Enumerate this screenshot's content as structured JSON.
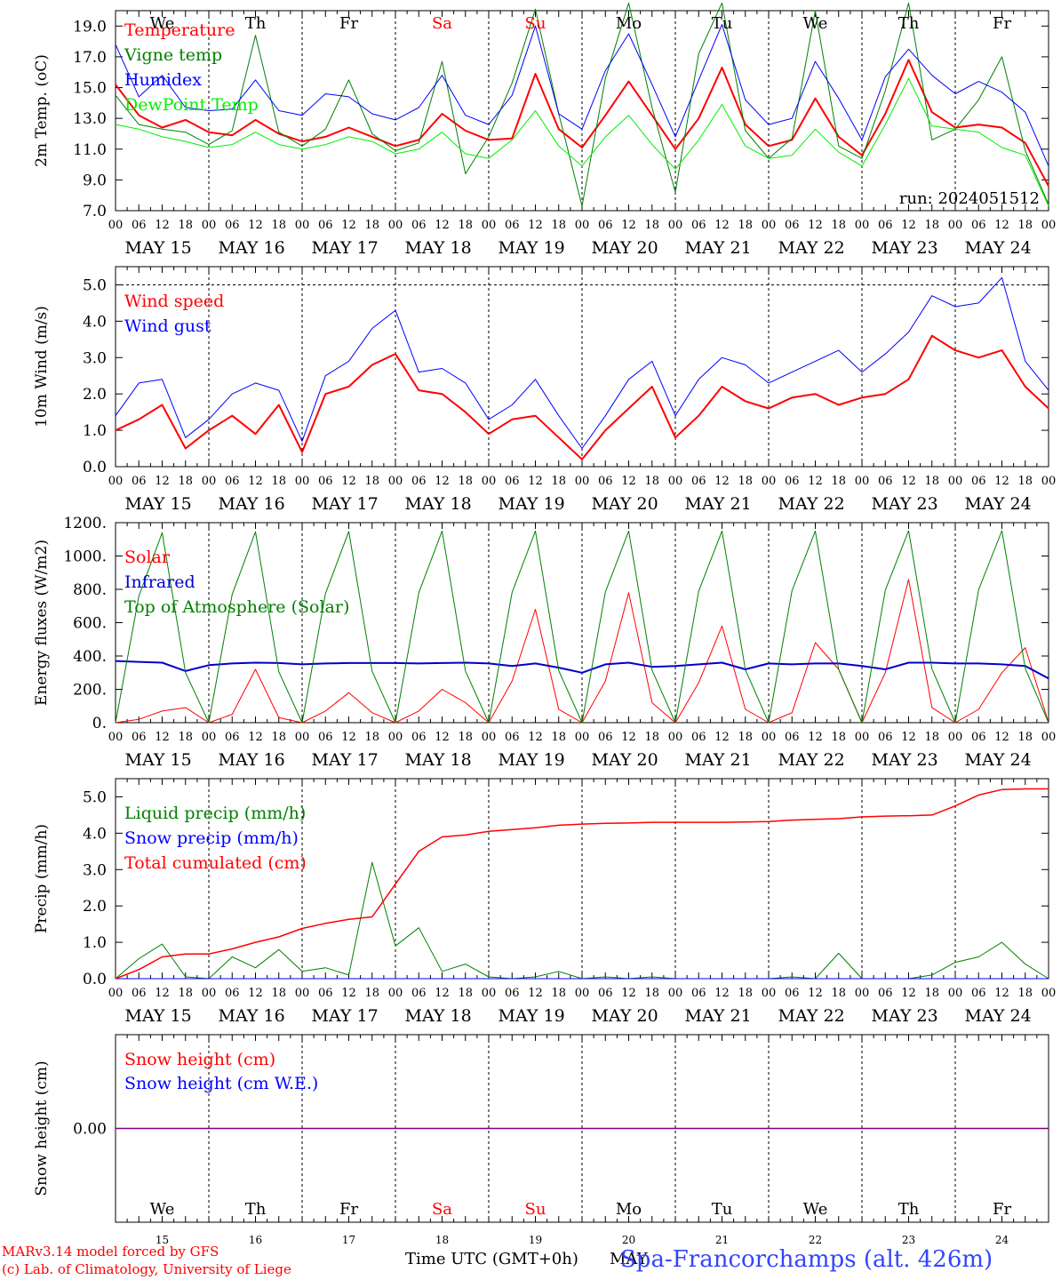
{
  "colors": {
    "temperature": "#ff0000",
    "vigne": "#008000",
    "humidex": "#0000ff",
    "dewpoint": "#00ee00",
    "weekend": "#ff0000",
    "text": "#000000",
    "station": "#3344ff",
    "credit": "#ff0000",
    "snow_line": "#7f007f"
  },
  "time_axis": {
    "start": "2024-05-15 00 UTC",
    "hour_ticks": [
      "00",
      "06",
      "12",
      "18"
    ],
    "final_tick": "00",
    "dates": [
      "MAY 15",
      "MAY 16",
      "MAY 17",
      "MAY 18",
      "MAY 19",
      "MAY 20",
      "MAY 21",
      "MAY 22",
      "MAY 23",
      "MAY 24"
    ],
    "weekdays": [
      {
        "label": "We",
        "weekend": false
      },
      {
        "label": "Th",
        "weekend": false
      },
      {
        "label": "Fr",
        "weekend": false
      },
      {
        "label": "Sa",
        "weekend": true
      },
      {
        "label": "Su",
        "weekend": true
      },
      {
        "label": "Mo",
        "weekend": false
      },
      {
        "label": "Tu",
        "weekend": false
      },
      {
        "label": "We",
        "weekend": false
      },
      {
        "label": "Th",
        "weekend": false
      },
      {
        "label": "Fr",
        "weekend": false
      }
    ],
    "day_numbers": [
      "15",
      "16",
      "17",
      "18",
      "19",
      "20",
      "21",
      "22",
      "23",
      "24"
    ],
    "xlabel": "Time UTC (GMT+0h)",
    "month_label": "MAY"
  },
  "chart_data": [
    {
      "type": "line",
      "ylabel": "2m Temp. (oC)",
      "ylim": [
        7.0,
        20.0
      ],
      "yticks": [
        "7.0",
        "9.0",
        "11.0",
        "13.0",
        "15.0",
        "17.0",
        "19.0"
      ],
      "run_label": "run: 2024051512",
      "weekday_labels": true,
      "x_hours": [
        0,
        6,
        12,
        18,
        24,
        30,
        36,
        42,
        48,
        54,
        60,
        66,
        72,
        78,
        84,
        90,
        96,
        102,
        108,
        114,
        120,
        126,
        132,
        138,
        144,
        150,
        156,
        162,
        168,
        174,
        180,
        186,
        192,
        198,
        204,
        210,
        216,
        222,
        228,
        234,
        240
      ],
      "series": [
        {
          "name": "Temperature",
          "color": "#ff0000",
          "width": 2,
          "values": [
            15.2,
            13.2,
            12.4,
            12.9,
            12.1,
            11.9,
            12.9,
            12.0,
            11.5,
            11.8,
            12.4,
            11.8,
            11.2,
            11.6,
            13.3,
            12.2,
            11.6,
            11.7,
            15.9,
            12.3,
            11.1,
            13.2,
            15.4,
            13.2,
            11.0,
            13.0,
            16.3,
            12.6,
            11.2,
            11.6,
            14.3,
            11.8,
            10.6,
            13.3,
            16.8,
            13.4,
            12.4,
            12.6,
            12.4,
            11.4,
            8.6
          ]
        },
        {
          "name": "Vigne temp",
          "color": "#008000",
          "width": 1,
          "values": [
            14.5,
            12.6,
            12.3,
            12.1,
            11.3,
            12.2,
            18.4,
            12.1,
            11.2,
            12.3,
            15.5,
            12.0,
            10.9,
            11.4,
            16.7,
            9.4,
            11.8,
            15.3,
            20.1,
            13.3,
            7.3,
            15.6,
            20.5,
            13.7,
            8.2,
            17.2,
            20.5,
            12.2,
            10.4,
            11.7,
            20.0,
            11.2,
            10.4,
            14.8,
            20.5,
            11.6,
            12.3,
            14.2,
            17.0,
            10.9,
            7.4
          ]
        },
        {
          "name": "Humidex",
          "color": "#0000ff",
          "width": 1,
          "values": [
            17.8,
            14.4,
            15.8,
            13.7,
            13.5,
            13.6,
            15.5,
            13.5,
            13.2,
            14.6,
            14.4,
            13.3,
            12.9,
            13.7,
            15.8,
            13.2,
            12.6,
            14.5,
            19.0,
            13.3,
            12.3,
            16.1,
            18.5,
            15.2,
            11.8,
            15.5,
            19.1,
            14.2,
            12.6,
            13.0,
            16.7,
            14.3,
            11.6,
            15.7,
            17.5,
            15.8,
            14.6,
            15.4,
            14.7,
            13.4,
            9.9
          ]
        },
        {
          "name": "DewPoint Temp",
          "color": "#00ee00",
          "width": 1,
          "values": [
            12.6,
            12.3,
            11.8,
            11.5,
            11.1,
            11.3,
            12.1,
            11.3,
            11.0,
            11.3,
            11.8,
            11.5,
            10.7,
            11.0,
            12.1,
            10.7,
            10.4,
            11.6,
            13.5,
            11.2,
            9.9,
            11.8,
            13.2,
            11.3,
            9.7,
            11.6,
            13.9,
            11.2,
            10.4,
            10.6,
            12.3,
            10.8,
            9.9,
            12.6,
            15.6,
            12.5,
            12.3,
            12.1,
            11.1,
            10.6,
            7.3
          ]
        }
      ]
    },
    {
      "type": "line",
      "ylabel": "10m Wind (m/s)",
      "ylim": [
        0.0,
        5.5
      ],
      "yticks": [
        "0.0",
        "1.0",
        "2.0",
        "3.0",
        "4.0",
        "5.0"
      ],
      "dashed_level": 5.0,
      "x_hours": [
        0,
        6,
        12,
        18,
        24,
        30,
        36,
        42,
        48,
        54,
        60,
        66,
        72,
        78,
        84,
        90,
        96,
        102,
        108,
        114,
        120,
        126,
        132,
        138,
        144,
        150,
        156,
        162,
        168,
        174,
        180,
        186,
        192,
        198,
        204,
        210,
        216,
        222,
        228,
        234,
        240
      ],
      "series": [
        {
          "name": "Wind speed",
          "color": "#ff0000",
          "width": 2,
          "values": [
            1.0,
            1.3,
            1.7,
            0.5,
            1.0,
            1.4,
            0.9,
            1.7,
            0.4,
            2.0,
            2.2,
            2.8,
            3.1,
            2.1,
            2.0,
            1.5,
            0.9,
            1.3,
            1.4,
            0.8,
            0.2,
            1.0,
            1.6,
            2.2,
            0.8,
            1.4,
            2.2,
            1.8,
            1.6,
            1.9,
            2.0,
            1.7,
            1.9,
            2.0,
            2.4,
            3.6,
            3.2,
            3.0,
            3.2,
            2.2,
            1.6
          ]
        },
        {
          "name": "Wind gust",
          "color": "#0000ff",
          "width": 1,
          "values": [
            1.4,
            2.3,
            2.4,
            0.8,
            1.3,
            2.0,
            2.3,
            2.1,
            0.7,
            2.5,
            2.9,
            3.8,
            4.3,
            2.6,
            2.7,
            2.3,
            1.3,
            1.7,
            2.4,
            1.4,
            0.5,
            1.4,
            2.4,
            2.9,
            1.4,
            2.4,
            3.0,
            2.8,
            2.3,
            2.6,
            2.9,
            3.2,
            2.6,
            3.1,
            3.7,
            4.7,
            4.4,
            4.5,
            5.2,
            2.9,
            2.1
          ]
        }
      ]
    },
    {
      "type": "line",
      "ylabel": "Energy fluxes (W/m2)",
      "ylim": [
        0,
        1200
      ],
      "yticks": [
        "0.",
        "200.",
        "400.",
        "600.",
        "800.",
        "1000.",
        "1200."
      ],
      "x_hours": [
        0,
        6,
        12,
        18,
        24,
        30,
        36,
        42,
        48,
        54,
        60,
        66,
        72,
        78,
        84,
        90,
        96,
        102,
        108,
        114,
        120,
        126,
        132,
        138,
        144,
        150,
        156,
        162,
        168,
        174,
        180,
        186,
        192,
        198,
        204,
        210,
        216,
        222,
        228,
        234,
        240
      ],
      "series": [
        {
          "name": "Solar",
          "color": "#ff0000",
          "width": 1,
          "values": [
            0,
            20,
            70,
            90,
            0,
            50,
            320,
            30,
            0,
            70,
            180,
            60,
            0,
            70,
            200,
            120,
            0,
            250,
            680,
            80,
            0,
            250,
            780,
            120,
            0,
            240,
            580,
            80,
            0,
            60,
            480,
            320,
            0,
            300,
            860,
            90,
            0,
            80,
            300,
            450,
            0
          ]
        },
        {
          "name": "Infrared",
          "color": "#0000cc",
          "width": 2,
          "values": [
            370,
            365,
            360,
            310,
            345,
            355,
            360,
            358,
            350,
            355,
            358,
            358,
            358,
            355,
            358,
            360,
            355,
            340,
            355,
            330,
            300,
            350,
            360,
            335,
            340,
            350,
            360,
            320,
            355,
            350,
            355,
            355,
            340,
            320,
            360,
            360,
            355,
            355,
            350,
            340,
            265
          ]
        },
        {
          "name": "Top of Atmosphere (Solar)",
          "color": "#008000",
          "width": 1,
          "values": [
            0,
            760,
            1140,
            300,
            0,
            770,
            1145,
            305,
            0,
            775,
            1148,
            308,
            0,
            780,
            1150,
            310,
            0,
            782,
            1150,
            312,
            0,
            785,
            1150,
            315,
            0,
            790,
            1150,
            318,
            0,
            792,
            1150,
            320,
            0,
            795,
            1152,
            322,
            0,
            798,
            1152,
            325,
            0
          ]
        }
      ]
    },
    {
      "type": "line",
      "ylabel": "Precip (mm/h)",
      "ylim": [
        0.0,
        5.5
      ],
      "yticks": [
        "0.0",
        "1.0",
        "2.0",
        "3.0",
        "4.0",
        "5.0"
      ],
      "x_hours": [
        0,
        6,
        12,
        18,
        24,
        30,
        36,
        42,
        48,
        54,
        60,
        66,
        72,
        78,
        84,
        90,
        96,
        102,
        108,
        114,
        120,
        126,
        132,
        138,
        144,
        150,
        156,
        162,
        168,
        174,
        180,
        186,
        192,
        198,
        204,
        210,
        216,
        222,
        228,
        234,
        240
      ],
      "series": [
        {
          "name": "Liquid precip (mm/h)",
          "color": "#008000",
          "width": 1,
          "values": [
            0.0,
            0.55,
            0.95,
            0.05,
            0.0,
            0.6,
            0.3,
            0.8,
            0.2,
            0.3,
            0.1,
            3.2,
            0.9,
            1.4,
            0.2,
            0.4,
            0.05,
            0.0,
            0.05,
            0.2,
            0.0,
            0.05,
            0.0,
            0.05,
            0.0,
            0.0,
            0.0,
            0.0,
            0.0,
            0.05,
            0.0,
            0.7,
            0.0,
            0.0,
            0.0,
            0.1,
            0.45,
            0.6,
            1.0,
            0.4,
            0.0
          ]
        },
        {
          "name": "Snow precip (mm/h)",
          "color": "#0000ff",
          "width": 1,
          "values": [
            0.0,
            0.0,
            0.0,
            0.0,
            0.0,
            0.0,
            0.0,
            0.0,
            0.0,
            0.0,
            0.0,
            0.0,
            0.0,
            0.0,
            0.0,
            0.0,
            0.0,
            0.0,
            0.0,
            0.0,
            0.0,
            0.0,
            0.0,
            0.0,
            0.0,
            0.0,
            0.0,
            0.0,
            0.0,
            0.0,
            0.0,
            0.0,
            0.0,
            0.0,
            0.0,
            0.0,
            0.0,
            0.0,
            0.0,
            0.0,
            0.0
          ]
        },
        {
          "name": "Total cumulated (cm)",
          "color": "#ff0000",
          "width": 1.5,
          "values": [
            0.0,
            0.25,
            0.6,
            0.68,
            0.68,
            0.82,
            1.0,
            1.15,
            1.38,
            1.52,
            1.63,
            1.7,
            2.6,
            3.5,
            3.9,
            3.95,
            4.05,
            4.1,
            4.15,
            4.22,
            4.25,
            4.27,
            4.28,
            4.3,
            4.3,
            4.3,
            4.3,
            4.31,
            4.32,
            4.36,
            4.38,
            4.4,
            4.45,
            4.47,
            4.48,
            4.5,
            4.75,
            5.05,
            5.2,
            5.22,
            5.22
          ]
        }
      ]
    },
    {
      "type": "line",
      "ylabel": "Snow height (cm)",
      "ylim": [
        -1.0,
        1.0
      ],
      "yticks": [
        "0.00"
      ],
      "bottom_axis": true,
      "x_hours": [
        0,
        240
      ],
      "series": [
        {
          "name": "Snow height (cm)",
          "color": "#ff0000",
          "width": 1,
          "values": [
            0.0,
            0.0
          ]
        },
        {
          "name": "Snow height (cm W.E.)",
          "color": "#0000ff",
          "width": 1,
          "values": [
            0.0,
            0.0
          ]
        }
      ]
    }
  ],
  "footer": {
    "credit_line1": "MARv3.14 model forced by GFS",
    "credit_line2": "(c) Lab. of Climatology, University of Liege",
    "station": "Spa-Francorchamps (alt. 426m)"
  }
}
